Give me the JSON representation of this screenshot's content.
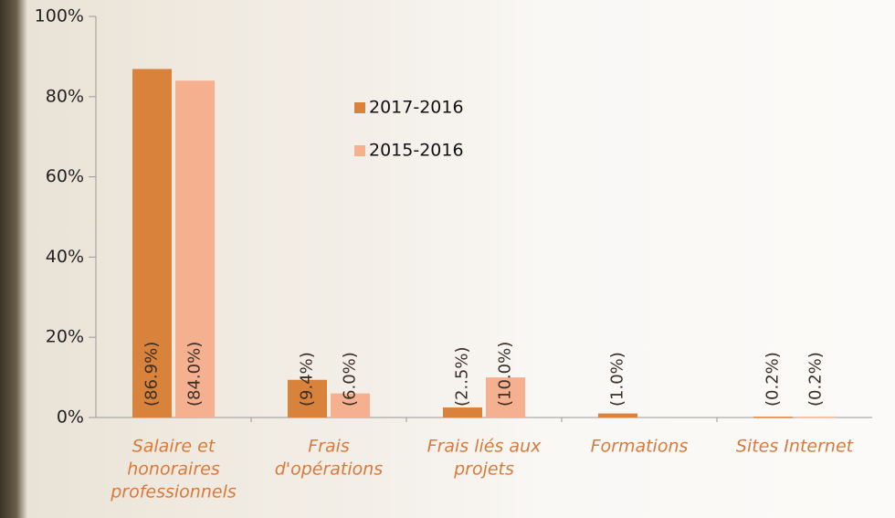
{
  "chart_data": {
    "type": "bar",
    "categories": [
      [
        "Salaire et",
        "honoraires",
        "professionnels"
      ],
      [
        "Frais",
        "d'opérations"
      ],
      [
        "Frais liés aux",
        "projets"
      ],
      [
        "Formations"
      ],
      [
        "Sites Internet"
      ]
    ],
    "series": [
      {
        "name": "2017-2016",
        "color": "#d9823c",
        "values": [
          86.9,
          9.4,
          2.5,
          1.0,
          0.2
        ],
        "value_labels": [
          "(86.9%)",
          "(9.4%)",
          "(2..5%)",
          "(1.0%)",
          "(0.2%)"
        ]
      },
      {
        "name": "2015-2016",
        "color": "#f4b08f",
        "values": [
          84.0,
          6.0,
          10.0,
          null,
          0.2
        ],
        "value_labels": [
          "(84.0%)",
          "(6.0%)",
          "(10.0%)",
          null,
          "(0.2%)"
        ]
      }
    ],
    "ylim": [
      0,
      100
    ],
    "yticks": [
      {
        "value": 0,
        "label": "0%"
      },
      {
        "value": 20,
        "label": "20%"
      },
      {
        "value": 40,
        "label": "40%"
      },
      {
        "value": 60,
        "label": "60%"
      },
      {
        "value": 80,
        "label": "80%"
      },
      {
        "value": 100,
        "label": "100%"
      }
    ],
    "grid": false
  }
}
